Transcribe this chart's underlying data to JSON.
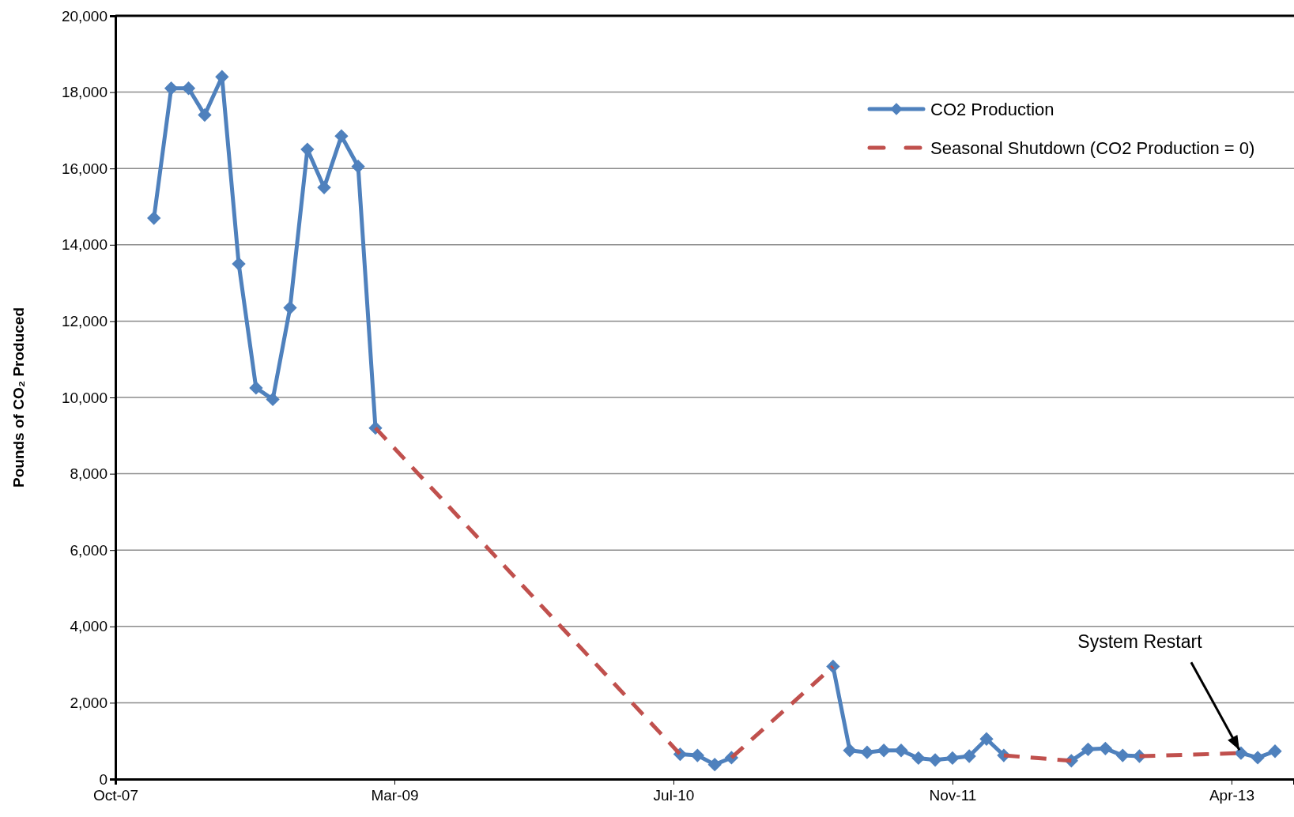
{
  "chart_data": {
    "type": "line",
    "ylabel": "Pounds of CO₂ Produced",
    "xlim": [
      "2007-10-20",
      "2013-08-01"
    ],
    "xticks": [
      {
        "value": "2007-10-20",
        "label": "Oct-07"
      },
      {
        "value": "2009-03-03",
        "label": "Mar-09"
      },
      {
        "value": "2010-07-16",
        "label": "Jul-10"
      },
      {
        "value": "2011-11-28",
        "label": "Nov-11"
      },
      {
        "value": "2013-04-11",
        "label": "Apr-13"
      }
    ],
    "ylim": [
      0,
      20000
    ],
    "yticks": [
      {
        "value": 0,
        "label": "0"
      },
      {
        "value": 2000,
        "label": "2,000"
      },
      {
        "value": 4000,
        "label": "4,000"
      },
      {
        "value": 6000,
        "label": "6,000"
      },
      {
        "value": 8000,
        "label": "8,000"
      },
      {
        "value": 10000,
        "label": "10,000"
      },
      {
        "value": 12000,
        "label": "12,000"
      },
      {
        "value": 14000,
        "label": "14,000"
      },
      {
        "value": 16000,
        "label": "16,000"
      },
      {
        "value": 18000,
        "label": "18,000"
      },
      {
        "value": 20000,
        "label": "20,000"
      }
    ],
    "grid": "y",
    "legend": "top right",
    "series": [
      {
        "name": "CO2 Production",
        "color": "#4f81bd",
        "marker": "diamond",
        "line_style": "solid",
        "x": [
          "2007-12-28",
          "2008-01-28",
          "2008-02-28",
          "2008-03-28",
          "2008-04-28",
          "2008-05-28",
          "2008-06-28",
          "2008-07-28",
          "2008-08-28",
          "2008-09-28",
          "2008-10-28",
          "2008-11-28",
          "2008-12-28",
          "2009-01-28",
          "2009-02-28",
          "2010-07-28",
          "2010-08-28",
          "2010-09-28",
          "2010-10-28",
          "2010-11-28",
          "2011-04-28",
          "2011-05-28",
          "2011-06-28",
          "2011-07-28",
          "2011-08-28",
          "2011-09-28",
          "2011-10-28",
          "2011-11-28",
          "2011-12-28",
          "2012-01-28",
          "2012-02-28",
          "2012-03-28",
          "2012-06-28",
          "2012-07-28",
          "2012-08-28",
          "2012-09-28",
          "2012-10-28",
          "2012-11-28",
          "2013-04-28",
          "2013-05-28",
          "2013-06-28"
        ],
        "values": [
          14700,
          18100,
          18100,
          17400,
          18400,
          13500,
          10250,
          9950,
          12350,
          16500,
          15500,
          16850,
          16050,
          9200,
          null,
          650,
          620,
          380,
          560,
          null,
          2950,
          750,
          700,
          750,
          750,
          550,
          500,
          550,
          600,
          1050,
          620,
          null,
          480,
          780,
          800,
          620,
          600,
          null,
          680,
          560,
          730
        ]
      },
      {
        "name": "Seasonal Shutdown (CO2 Production = 0)",
        "color": "#c0504d",
        "marker": "none",
        "line_style": "dashed",
        "x": [
          "2009-01-28",
          "2010-07-28",
          "2010-08-28",
          "2010-10-28",
          "2011-04-28",
          "2011-05-28",
          "2012-02-28",
          "2012-06-28",
          "2012-07-28",
          "2012-10-28",
          "2013-04-28"
        ],
        "values": [
          9200,
          650,
          null,
          560,
          2950,
          null,
          620,
          480,
          null,
          600,
          680
        ]
      }
    ],
    "annotations": [
      {
        "text": "System Restart",
        "x": "2013-04-28",
        "y": 680
      }
    ]
  }
}
